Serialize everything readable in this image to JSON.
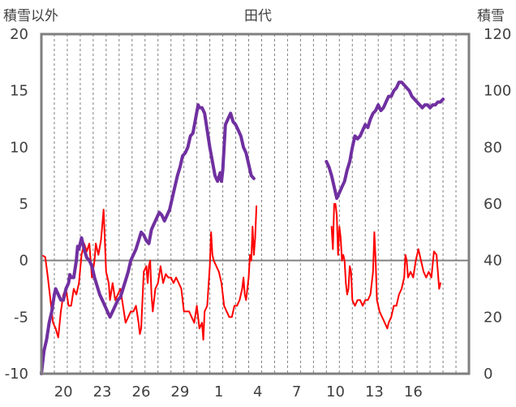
{
  "chart_data": {
    "type": "line",
    "title": "田代",
    "ylabel_left": "積雪以外",
    "ylabel_right": "積雪",
    "ylim_left": [
      -10,
      20
    ],
    "ylim_right": [
      0,
      120
    ],
    "yticks_left": [
      -10,
      -5,
      0,
      5,
      10,
      15,
      20
    ],
    "yticks_right": [
      0,
      20,
      40,
      60,
      80,
      100,
      120
    ],
    "x_day_range": [
      0,
      33
    ],
    "xticks": [
      {
        "day": 1.7,
        "label": "20"
      },
      {
        "day": 4.7,
        "label": "23"
      },
      {
        "day": 7.7,
        "label": "26"
      },
      {
        "day": 10.7,
        "label": "29"
      },
      {
        "day": 13.7,
        "label": "1"
      },
      {
        "day": 16.7,
        "label": "4"
      },
      {
        "day": 19.7,
        "label": "7"
      },
      {
        "day": 22.7,
        "label": "10"
      },
      {
        "day": 25.7,
        "label": "13"
      },
      {
        "day": 28.7,
        "label": "16"
      }
    ],
    "zero_line": 0,
    "series": [
      {
        "axis": "left",
        "color": "#ff0000",
        "points": [
          [
            0,
            0.5
          ],
          [
            0.3,
            0.3
          ],
          [
            0.5,
            -1.5
          ],
          [
            0.7,
            -3.5
          ],
          [
            0.9,
            -5.5
          ],
          [
            1.1,
            -6
          ],
          [
            1.3,
            -6.8
          ],
          [
            1.5,
            -4.5
          ],
          [
            1.7,
            -3
          ],
          [
            1.9,
            -2.5
          ],
          [
            2.1,
            -4
          ],
          [
            2.3,
            -4
          ],
          [
            2.5,
            -2.5
          ],
          [
            2.7,
            -3
          ],
          [
            2.9,
            -2
          ],
          [
            3.1,
            0.5
          ],
          [
            3.3,
            1.5
          ],
          [
            3.5,
            0.8
          ],
          [
            3.7,
            1.5
          ],
          [
            3.9,
            -1.5
          ],
          [
            4.1,
            0
          ],
          [
            4.2,
            1.5
          ],
          [
            4.4,
            0.5
          ],
          [
            4.6,
            1.8
          ],
          [
            4.8,
            4.5
          ],
          [
            5.0,
            -1
          ],
          [
            5.2,
            -2
          ],
          [
            5.3,
            -3.5
          ],
          [
            5.5,
            -2
          ],
          [
            5.7,
            -3.5
          ],
          [
            5.9,
            -3
          ],
          [
            6.1,
            -2.5
          ],
          [
            6.3,
            -4
          ],
          [
            6.5,
            -5.5
          ],
          [
            6.7,
            -5
          ],
          [
            6.9,
            -4.5
          ],
          [
            7.1,
            -4.5
          ],
          [
            7.3,
            -4
          ],
          [
            7.5,
            -5.5
          ],
          [
            7.6,
            -6.5
          ],
          [
            7.7,
            -6
          ],
          [
            7.9,
            -1
          ],
          [
            8.1,
            -0.5
          ],
          [
            8.2,
            -2
          ],
          [
            8.3,
            -0.5
          ],
          [
            8.4,
            0
          ],
          [
            8.5,
            -3
          ],
          [
            8.6,
            -4.5
          ],
          [
            8.8,
            -2.5
          ],
          [
            9.0,
            -2
          ],
          [
            9.2,
            -0.5
          ],
          [
            9.4,
            -2
          ],
          [
            9.6,
            -1.2
          ],
          [
            9.8,
            -1.5
          ],
          [
            10.0,
            -1.5
          ],
          [
            10.2,
            -2
          ],
          [
            10.4,
            -1.5
          ],
          [
            10.6,
            -2
          ],
          [
            10.8,
            -2.5
          ],
          [
            11.0,
            -4.5
          ],
          [
            11.2,
            -4.5
          ],
          [
            11.4,
            -4.5
          ],
          [
            11.6,
            -5
          ],
          [
            11.8,
            -5.5
          ],
          [
            12.0,
            -4
          ],
          [
            12.2,
            -6
          ],
          [
            12.4,
            -5.5
          ],
          [
            12.5,
            -7
          ],
          [
            12.6,
            -4.5
          ],
          [
            12.8,
            -4
          ],
          [
            13.0,
            -0.5
          ],
          [
            13.1,
            2.5
          ],
          [
            13.2,
            0.5
          ],
          [
            13.3,
            0
          ],
          [
            13.5,
            -0.5
          ],
          [
            13.7,
            -1
          ],
          [
            13.9,
            -2
          ],
          [
            14.1,
            -4
          ],
          [
            14.3,
            -4.5
          ],
          [
            14.5,
            -5
          ],
          [
            14.7,
            -5
          ],
          [
            14.9,
            -4
          ],
          [
            15.1,
            -4
          ],
          [
            15.3,
            -3.5
          ],
          [
            15.5,
            -2.5
          ],
          [
            15.6,
            -1.5
          ],
          [
            15.7,
            -3
          ],
          [
            15.8,
            -3.5
          ],
          [
            16.0,
            -1.5
          ],
          [
            16.1,
            0.5
          ],
          [
            16.2,
            0
          ],
          [
            16.3,
            3
          ],
          [
            16.4,
            0.5
          ],
          [
            16.5,
            2
          ],
          [
            16.6,
            4.8
          ],
          null,
          [
            22.4,
            3
          ],
          [
            22.5,
            1
          ],
          [
            22.6,
            5
          ],
          [
            22.7,
            5
          ],
          [
            22.8,
            4
          ],
          [
            22.9,
            0.5
          ],
          [
            23.0,
            3
          ],
          [
            23.1,
            2
          ],
          [
            23.2,
            0
          ],
          [
            23.3,
            0.5
          ],
          [
            23.4,
            0
          ],
          [
            23.5,
            -2
          ],
          [
            23.6,
            -3
          ],
          [
            23.7,
            -2.5
          ],
          [
            23.8,
            -0.5
          ],
          [
            23.9,
            -1
          ],
          [
            24.0,
            -3.5
          ],
          [
            24.2,
            -4
          ],
          [
            24.4,
            -3.5
          ],
          [
            24.6,
            -3.5
          ],
          [
            24.8,
            -4
          ],
          [
            25.0,
            -3.5
          ],
          [
            25.2,
            -3.5
          ],
          [
            25.4,
            -3
          ],
          [
            25.5,
            -2
          ],
          [
            25.6,
            -1
          ],
          [
            25.7,
            2.5
          ],
          [
            25.8,
            0
          ],
          [
            25.9,
            -3.5
          ],
          [
            26.1,
            -4.5
          ],
          [
            26.3,
            -5
          ],
          [
            26.5,
            -5.5
          ],
          [
            26.7,
            -6
          ],
          [
            26.8,
            -5.5
          ],
          [
            27.0,
            -5
          ],
          [
            27.2,
            -4
          ],
          [
            27.4,
            -4
          ],
          [
            27.6,
            -3
          ],
          [
            27.8,
            -2.5
          ],
          [
            28.0,
            -1.5
          ],
          [
            28.1,
            0.5
          ],
          [
            28.2,
            0
          ],
          [
            28.3,
            -1.5
          ],
          [
            28.5,
            -1
          ],
          [
            28.7,
            -1.5
          ],
          [
            28.9,
            0
          ],
          [
            29.1,
            1
          ],
          [
            29.3,
            0
          ],
          [
            29.5,
            -1
          ],
          [
            29.7,
            -1.5
          ],
          [
            29.9,
            -1
          ],
          [
            30.1,
            -1.5
          ],
          [
            30.3,
            0.8
          ],
          [
            30.5,
            0.5
          ],
          [
            30.7,
            -2.5
          ],
          [
            30.8,
            -2
          ]
        ]
      },
      {
        "axis": "right",
        "color": "#7030a0",
        "points": [
          [
            0,
            0
          ],
          [
            0.2,
            8
          ],
          [
            0.4,
            12
          ],
          [
            0.6,
            18
          ],
          [
            0.8,
            22
          ],
          [
            1.0,
            28
          ],
          [
            1.1,
            30
          ],
          [
            1.3,
            28
          ],
          [
            1.5,
            26
          ],
          [
            1.7,
            26
          ],
          [
            1.9,
            30
          ],
          [
            2.1,
            32
          ],
          [
            2.2,
            35
          ],
          [
            2.3,
            34
          ],
          [
            2.5,
            34
          ],
          [
            2.7,
            40
          ],
          [
            2.8,
            45
          ],
          [
            2.9,
            44
          ],
          [
            3.1,
            48
          ],
          [
            3.3,
            44
          ],
          [
            3.5,
            41
          ],
          [
            3.7,
            40
          ],
          [
            3.9,
            38
          ],
          [
            4.1,
            34
          ],
          [
            4.3,
            31
          ],
          [
            4.5,
            28
          ],
          [
            4.7,
            26
          ],
          [
            4.9,
            24
          ],
          [
            5.1,
            22
          ],
          [
            5.3,
            20
          ],
          [
            5.5,
            22
          ],
          [
            5.7,
            24
          ],
          [
            5.9,
            26
          ],
          [
            6.1,
            27
          ],
          [
            6.3,
            30
          ],
          [
            6.5,
            33
          ],
          [
            6.7,
            36
          ],
          [
            6.9,
            40
          ],
          [
            7.1,
            42
          ],
          [
            7.3,
            44
          ],
          [
            7.5,
            47
          ],
          [
            7.7,
            50
          ],
          [
            7.9,
            49
          ],
          [
            8.1,
            47
          ],
          [
            8.3,
            46
          ],
          [
            8.5,
            51
          ],
          [
            8.7,
            53
          ],
          [
            8.9,
            55
          ],
          [
            9.1,
            57
          ],
          [
            9.3,
            56
          ],
          [
            9.5,
            54
          ],
          [
            9.7,
            56
          ],
          [
            9.9,
            58
          ],
          [
            10.1,
            62
          ],
          [
            10.3,
            66
          ],
          [
            10.5,
            70
          ],
          [
            10.7,
            73
          ],
          [
            10.9,
            77
          ],
          [
            11.1,
            78
          ],
          [
            11.3,
            80
          ],
          [
            11.5,
            84
          ],
          [
            11.7,
            85
          ],
          [
            11.9,
            90
          ],
          [
            12.1,
            95
          ],
          [
            12.2,
            94
          ],
          [
            12.4,
            94
          ],
          [
            12.6,
            92
          ],
          [
            12.8,
            86
          ],
          [
            13.0,
            80
          ],
          [
            13.2,
            75
          ],
          [
            13.4,
            70
          ],
          [
            13.6,
            68
          ],
          [
            13.8,
            71
          ],
          [
            13.9,
            68
          ],
          [
            14.0,
            72
          ],
          [
            14.2,
            88
          ],
          [
            14.4,
            90
          ],
          [
            14.6,
            92
          ],
          [
            14.8,
            89
          ],
          [
            15.0,
            88
          ],
          [
            15.2,
            86
          ],
          [
            15.4,
            84
          ],
          [
            15.6,
            80
          ],
          [
            15.8,
            78
          ],
          [
            16.0,
            74
          ],
          [
            16.2,
            70
          ],
          [
            16.4,
            69
          ],
          null,
          [
            22.0,
            75
          ],
          [
            22.2,
            73
          ],
          [
            22.4,
            70
          ],
          [
            22.6,
            66
          ],
          [
            22.8,
            62
          ],
          [
            23.0,
            64
          ],
          [
            23.2,
            66
          ],
          [
            23.4,
            68
          ],
          [
            23.6,
            72
          ],
          [
            23.8,
            75
          ],
          [
            24.0,
            80
          ],
          [
            24.2,
            84
          ],
          [
            24.4,
            83
          ],
          [
            24.6,
            84
          ],
          [
            24.8,
            86
          ],
          [
            25.0,
            88
          ],
          [
            25.2,
            87
          ],
          [
            25.4,
            90
          ],
          [
            25.6,
            92
          ],
          [
            25.8,
            93
          ],
          [
            26.0,
            95
          ],
          [
            26.2,
            93
          ],
          [
            26.4,
            94
          ],
          [
            26.6,
            96
          ],
          [
            26.8,
            98
          ],
          [
            27.0,
            98
          ],
          [
            27.2,
            100
          ],
          [
            27.4,
            101
          ],
          [
            27.6,
            103
          ],
          [
            27.8,
            103
          ],
          [
            28.0,
            102
          ],
          [
            28.2,
            101
          ],
          [
            28.4,
            100
          ],
          [
            28.6,
            98
          ],
          [
            28.8,
            97
          ],
          [
            29.0,
            96
          ],
          [
            29.2,
            95
          ],
          [
            29.4,
            94
          ],
          [
            29.6,
            95
          ],
          [
            29.8,
            95
          ],
          [
            30.0,
            94
          ],
          [
            30.2,
            95
          ],
          [
            30.4,
            95
          ],
          [
            30.6,
            96
          ],
          [
            30.8,
            96
          ],
          [
            31.0,
            97
          ]
        ]
      }
    ]
  }
}
